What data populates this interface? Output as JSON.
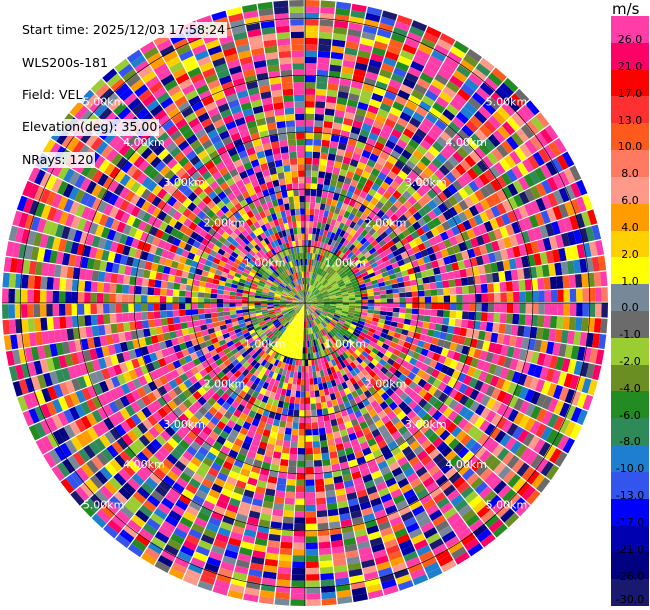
{
  "info": {
    "start_time": "Start time: 2025/12/03 17:58:24",
    "station": "WLS200s-181",
    "field": "Field: VEL",
    "elevation": "Elevation(deg): 35.00",
    "nrays": "NRays: 120"
  },
  "colorbar": {
    "unit": "m/s",
    "ticks": [
      "26.0",
      "21.0",
      "17.0",
      "13.0",
      "10.0",
      "8.0",
      "6.0",
      "4.0",
      "2.0",
      "1.0",
      "0.0",
      "-1.0",
      "-2.0",
      "-4.0",
      "-6.0",
      "-8.0",
      "-10.0",
      "-13.0",
      "-17.0",
      "-21.0",
      "-26.0",
      "-30.0"
    ],
    "colors": [
      "#ff3ca8",
      "#ff0066",
      "#ff0000",
      "#ff3030",
      "#ff5a1e",
      "#ff7a60",
      "#ff9a8a",
      "#ff9c00",
      "#ffd000",
      "#ffff00",
      "#778899",
      "#6b6b6b",
      "#9acd32",
      "#6b8e23",
      "#228b22",
      "#2e8b57",
      "#1e7fd0",
      "#3355ee",
      "#0000ff",
      "#0000b0",
      "#000080",
      "#191970"
    ]
  },
  "chart_data": {
    "type": "heatmap",
    "projection": "polar-ppi",
    "field": "VEL",
    "nrays": 120,
    "range_rings_km": [
      "1.00km",
      "2.00km",
      "3.00km",
      "4.00km",
      "5.00km"
    ],
    "max_range_km": 5.0
  }
}
